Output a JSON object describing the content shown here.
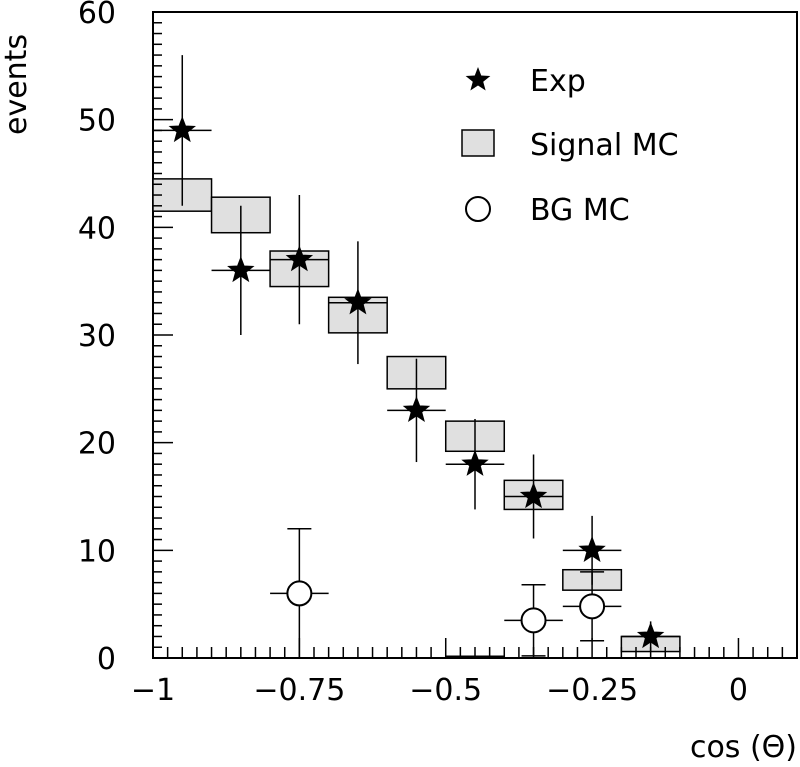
{
  "chart_data": {
    "type": "scatter",
    "xlabel": "cos (Θ)",
    "ylabel": "events",
    "xlim": [
      -1,
      0.1
    ],
    "ylim": [
      0,
      60
    ],
    "x_ticks": [
      -1,
      -0.75,
      -0.5,
      -0.25,
      0
    ],
    "x_tick_labels": [
      "−1",
      "−0.75",
      "−0.5",
      "−0.25",
      "0"
    ],
    "y_ticks": [
      0,
      10,
      20,
      30,
      40,
      50,
      60
    ],
    "y_tick_labels": [
      "0",
      "10",
      "20",
      "30",
      "40",
      "50",
      "60"
    ],
    "legend_position": "top-right",
    "series": [
      {
        "name": "Exp",
        "marker": "star",
        "x": [
          -0.95,
          -0.85,
          -0.75,
          -0.65,
          -0.55,
          -0.45,
          -0.35,
          -0.25,
          -0.15
        ],
        "y": [
          49,
          36,
          37,
          33,
          23,
          18,
          15,
          10,
          2
        ],
        "y_err_low": [
          7,
          6,
          6,
          5.7,
          4.8,
          4.2,
          3.9,
          3.2,
          1.4
        ],
        "y_err_high": [
          7,
          6,
          6,
          5.7,
          4.8,
          4.2,
          3.9,
          3.2,
          1.4
        ],
        "x_half_width": 0.05
      },
      {
        "name": "Signal MC",
        "marker": "box",
        "x": [
          -0.95,
          -0.85,
          -0.75,
          -0.65,
          -0.55,
          -0.45,
          -0.35,
          -0.25,
          -0.15
        ],
        "y_low": [
          41.5,
          39.5,
          34.5,
          30.2,
          25.0,
          19.2,
          13.8,
          6.3,
          0.6
        ],
        "y_high": [
          44.5,
          42.8,
          37.8,
          33.5,
          28.0,
          22.0,
          16.5,
          8.2,
          2.0
        ],
        "x_half_width": 0.05
      },
      {
        "name": "BG MC",
        "marker": "open-circle",
        "x": [
          -0.75,
          -0.35,
          -0.25
        ],
        "y": [
          6,
          3.5,
          4.8
        ],
        "y_err_low": [
          6,
          3.3,
          3.2
        ],
        "y_err_high": [
          6,
          3.3,
          3.2
        ],
        "x_half_width": 0.05,
        "flat_bins": [
          {
            "x0": -0.5,
            "x1": -0.4,
            "y": 0
          }
        ]
      }
    ]
  }
}
